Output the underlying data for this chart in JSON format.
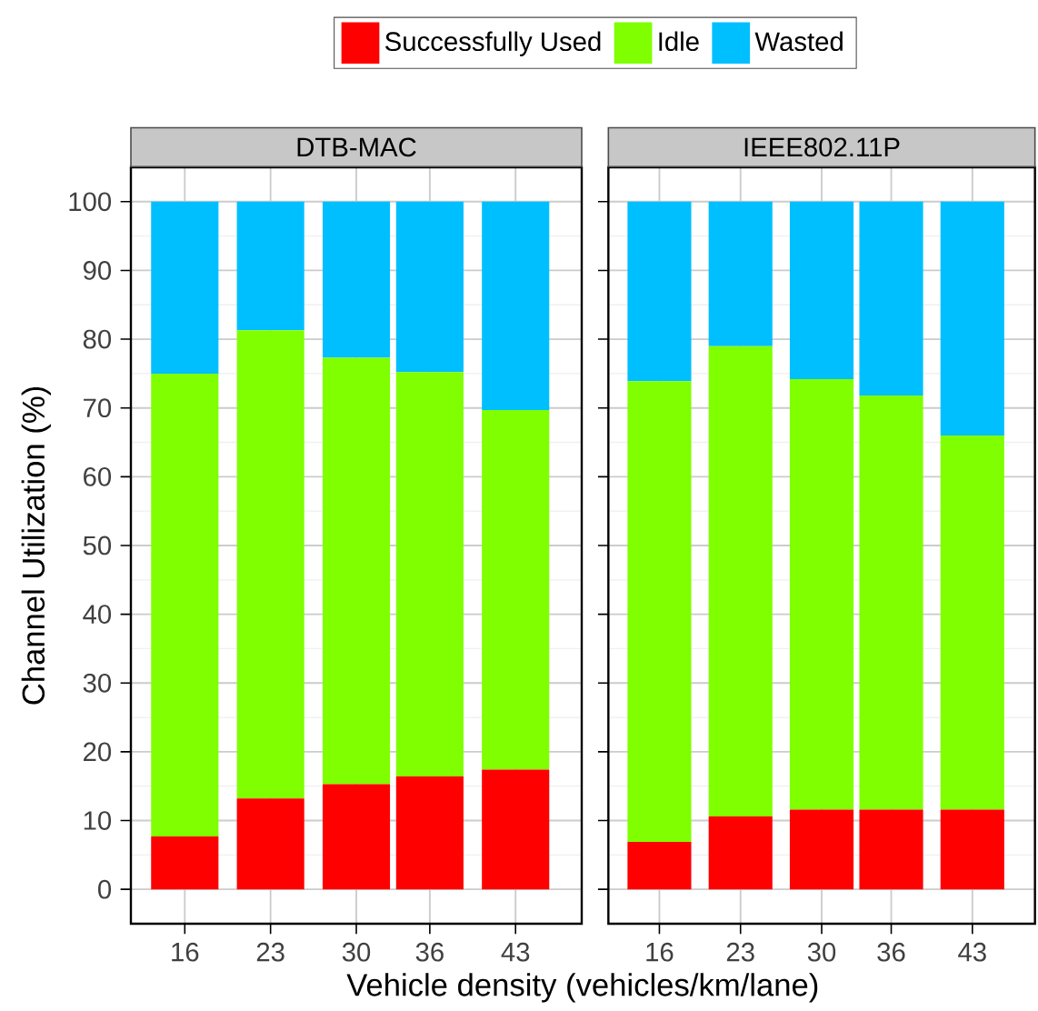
{
  "chart_data": [
    {
      "type": "bar",
      "title": "DTB-MAC",
      "xlabel": "Vehicle density (vehicles/km/lane)",
      "ylabel": "Channel Utilization (%)",
      "stacked": true,
      "grid": true,
      "legend": "top",
      "x": [
        16,
        23,
        30,
        36,
        43
      ],
      "xlim": [
        11.6,
        48.4
      ],
      "xticks": [
        16,
        23,
        30,
        36,
        43
      ],
      "ylim": [
        -5,
        105
      ],
      "yticks": [
        0,
        10,
        20,
        30,
        40,
        50,
        60,
        70,
        80,
        90,
        100
      ],
      "series": [
        {
          "name": "Successfully Used",
          "color": "#ff0000",
          "values": [
            7.7,
            13.2,
            15.3,
            16.4,
            17.4
          ]
        },
        {
          "name": "Idle",
          "color": "#7fff00",
          "values": [
            67.3,
            68.1,
            62.0,
            58.8,
            52.3
          ]
        },
        {
          "name": "Wasted",
          "color": "#00bfff",
          "values": [
            25.0,
            18.7,
            22.7,
            24.8,
            30.3
          ]
        }
      ]
    },
    {
      "type": "bar",
      "title": "IEEE802.11P",
      "stacked": true,
      "grid": true,
      "tick_labels": "x",
      "x": [
        16,
        23,
        30,
        36,
        43
      ],
      "xlim": [
        11.6,
        48.4
      ],
      "xticks": [
        16,
        23,
        30,
        36,
        43
      ],
      "ylim": [
        -5,
        105
      ],
      "yticks": [
        0,
        10,
        20,
        30,
        40,
        50,
        60,
        70,
        80,
        90,
        100
      ],
      "series": [
        {
          "color": "#ff0000",
          "values": [
            6.9,
            10.6,
            11.6,
            11.6,
            11.6
          ]
        },
        {
          "color": "#7fff00",
          "values": [
            67.0,
            68.4,
            62.6,
            60.2,
            54.4
          ]
        },
        {
          "color": "#00bfff",
          "values": [
            26.1,
            21.0,
            25.8,
            28.2,
            34.0
          ]
        }
      ]
    }
  ]
}
